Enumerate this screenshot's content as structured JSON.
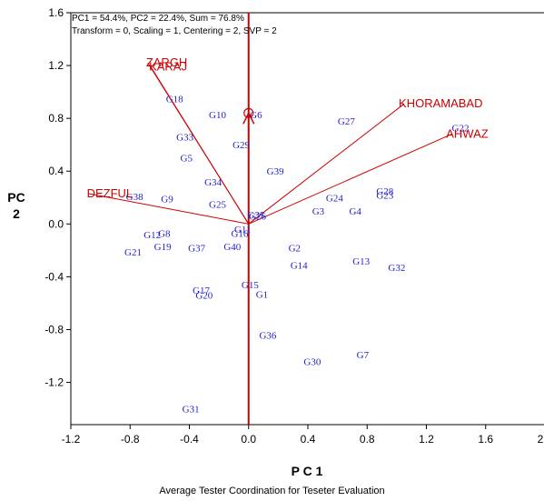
{
  "chart_data": {
    "type": "scatter",
    "title": "",
    "annotations": [
      "PC1 = 54.4%, PC2 = 22.4%, Sum = 76.8%",
      "Transform = 0, Scaling = 1, Centering = 2, SVP = 2"
    ],
    "xlabel": "P C 1",
    "ylabel": "P C 2",
    "caption": "Average Tester Coordination for Teseter Evaluation",
    "xlim": [
      -1.2,
      2.0
    ],
    "ylim": [
      -1.52,
      1.6
    ],
    "xticks": [
      "-1.2",
      "-0.8",
      "-0.4",
      "0.0",
      "0.4",
      "0.8",
      "1.2",
      "1.6",
      "2.0"
    ],
    "yticks": [
      "-1.2",
      "-0.8",
      "-0.4",
      "0.0",
      "0.4",
      "0.8",
      "1.2",
      "1.6"
    ],
    "grid": false,
    "colors": {
      "genotype": "#2222cc",
      "tester": "#cc0000",
      "axis": "#000000"
    },
    "average_tester_axis": {
      "from": [
        0,
        0
      ],
      "to": [
        0.0,
        0.84
      ]
    },
    "testers": [
      {
        "name": "ZARGH",
        "x": -0.68,
        "y": 1.22
      },
      {
        "name": "KARAJ",
        "x": -0.66,
        "y": 1.19
      },
      {
        "name": "DEZFUL",
        "x": -1.08,
        "y": 0.23
      },
      {
        "name": "KHORAMABAD",
        "x": 1.05,
        "y": 0.91
      },
      {
        "name": "AHWAZ",
        "x": 1.37,
        "y": 0.68
      }
    ],
    "genotypes": [
      {
        "name": "G1",
        "x": 0.09,
        "y": -0.53
      },
      {
        "name": "G2",
        "x": 0.31,
        "y": -0.18
      },
      {
        "name": "G3",
        "x": 0.47,
        "y": 0.1
      },
      {
        "name": "G4",
        "x": 0.72,
        "y": 0.1
      },
      {
        "name": "G5",
        "x": -0.42,
        "y": 0.5
      },
      {
        "name": "G6",
        "x": 0.05,
        "y": 0.83
      },
      {
        "name": "G7",
        "x": 0.77,
        "y": -0.99
      },
      {
        "name": "G8",
        "x": -0.57,
        "y": -0.07
      },
      {
        "name": "G9",
        "x": -0.55,
        "y": 0.19
      },
      {
        "name": "G10",
        "x": -0.21,
        "y": 0.83
      },
      {
        "name": "G11",
        "x": -0.04,
        "y": -0.04
      },
      {
        "name": "G12",
        "x": -0.65,
        "y": -0.08
      },
      {
        "name": "G13",
        "x": 0.76,
        "y": -0.28
      },
      {
        "name": "G14",
        "x": 0.34,
        "y": -0.31
      },
      {
        "name": "G15",
        "x": 0.01,
        "y": -0.46
      },
      {
        "name": "G16",
        "x": -0.06,
        "y": -0.07
      },
      {
        "name": "G17",
        "x": -0.32,
        "y": -0.5
      },
      {
        "name": "G18",
        "x": -0.5,
        "y": 0.95
      },
      {
        "name": "G19",
        "x": -0.58,
        "y": -0.17
      },
      {
        "name": "G20",
        "x": -0.3,
        "y": -0.54
      },
      {
        "name": "G21",
        "x": -0.78,
        "y": -0.21
      },
      {
        "name": "G22",
        "x": 1.43,
        "y": 0.73
      },
      {
        "name": "G23",
        "x": 0.92,
        "y": 0.22
      },
      {
        "name": "G24",
        "x": 0.58,
        "y": 0.2
      },
      {
        "name": "G25",
        "x": -0.21,
        "y": 0.15
      },
      {
        "name": "G26",
        "x": 0.06,
        "y": 0.06
      },
      {
        "name": "G27",
        "x": 0.66,
        "y": 0.78
      },
      {
        "name": "G28",
        "x": 0.92,
        "y": 0.25
      },
      {
        "name": "G29",
        "x": -0.05,
        "y": 0.6
      },
      {
        "name": "G30",
        "x": 0.43,
        "y": -1.04
      },
      {
        "name": "G31",
        "x": -0.39,
        "y": -1.4
      },
      {
        "name": "G32",
        "x": 1.0,
        "y": -0.33
      },
      {
        "name": "G33",
        "x": -0.43,
        "y": 0.66
      },
      {
        "name": "G34",
        "x": -0.24,
        "y": 0.32
      },
      {
        "name": "G35",
        "x": 0.05,
        "y": 0.07
      },
      {
        "name": "G36",
        "x": 0.13,
        "y": -0.84
      },
      {
        "name": "G37",
        "x": -0.35,
        "y": -0.18
      },
      {
        "name": "G38",
        "x": -0.77,
        "y": 0.21
      },
      {
        "name": "G39",
        "x": 0.18,
        "y": 0.4
      },
      {
        "name": "G40",
        "x": -0.11,
        "y": -0.17
      }
    ]
  }
}
